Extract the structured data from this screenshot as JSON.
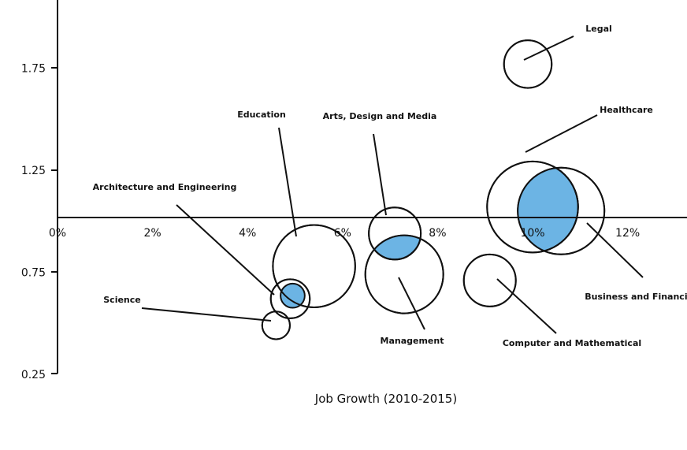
{
  "chart_data": {
    "type": "bubble",
    "title": "",
    "xlabel": "Job Growth (2010-2015)",
    "ylabel": "",
    "x_ticks": [
      "0%",
      "2%",
      "4%",
      "6%",
      "8%",
      "10%",
      "12%"
    ],
    "x_tick_values": [
      0,
      2,
      4,
      6,
      8,
      10,
      12
    ],
    "y_ticks": [
      "0.25",
      "0.75",
      "1.25",
      "1.75"
    ],
    "y_tick_values": [
      0.25,
      0.75,
      1.25,
      1.75
    ],
    "xlim": [
      0,
      13.3
    ],
    "ylim": [
      0.25,
      2.0
    ],
    "x_axis_crosses_y": 1.0,
    "grid": false,
    "colors": {
      "highlight": "#6cb4e4",
      "stroke": "#111111",
      "fill": "#ffffff"
    },
    "points": [
      {
        "category": "Legal",
        "x": 9.9,
        "y": 1.77,
        "size": 0.55,
        "highlight_size": 0,
        "label": "Legal"
      },
      {
        "category": "Healthcare",
        "x": 10.0,
        "y": 1.07,
        "size": 1.05,
        "highlight_size": 0,
        "label": "Healthcare"
      },
      {
        "category": "Business and Financial",
        "x": 10.6,
        "y": 1.05,
        "size": 1.0,
        "highlight_size": 0.75,
        "label": "Business and Financial"
      },
      {
        "category": "Education",
        "x": 5.4,
        "y": 0.78,
        "size": 0.95,
        "highlight_size": 0,
        "label": "Education"
      },
      {
        "category": "Arts, Design and Media",
        "x": 7.1,
        "y": 0.94,
        "size": 0.6,
        "highlight_size": 0,
        "label": "Arts, Design and Media"
      },
      {
        "category": "Management",
        "x": 7.3,
        "y": 0.74,
        "size": 0.9,
        "highlight_size": 0.45,
        "label": "Management"
      },
      {
        "category": "Computer and Mathematical",
        "x": 9.1,
        "y": 0.71,
        "size": 0.6,
        "highlight_size": 0,
        "label": "Computer and Mathematical"
      },
      {
        "category": "Architecture and Engineering",
        "x": 4.9,
        "y": 0.62,
        "size": 0.45,
        "highlight_size": 0.3,
        "label": "Architecture and Engineering"
      },
      {
        "category": "Science",
        "x": 4.6,
        "y": 0.49,
        "size": 0.32,
        "highlight_size": 0,
        "label": "Science"
      }
    ]
  }
}
